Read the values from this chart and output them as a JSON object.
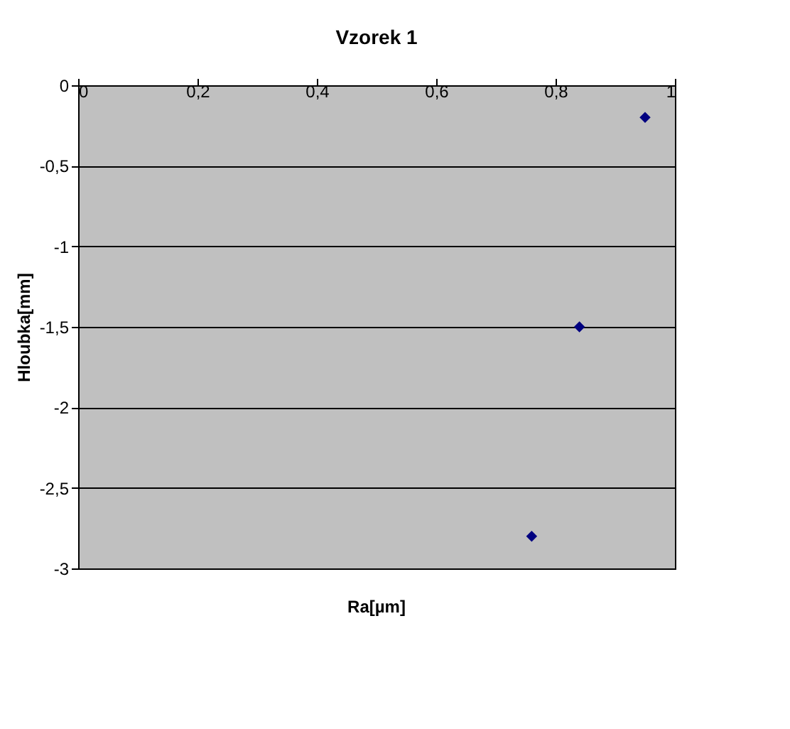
{
  "chart_data": {
    "type": "scatter",
    "title": "Vzorek 1",
    "xlabel": "Ra[µm]",
    "ylabel": "Hloubka[mm]",
    "x": [
      0.95,
      0.84,
      0.76
    ],
    "series": [
      {
        "color": "#000080",
        "values": [
          -0.2,
          -1.5,
          -2.8
        ]
      }
    ],
    "marker": "diamond",
    "xlim": [
      0,
      1
    ],
    "xticks": [
      {
        "value": 0,
        "label": "0"
      },
      {
        "value": 0.2,
        "label": "0,2"
      },
      {
        "value": 0.4,
        "label": "0,4"
      },
      {
        "value": 0.6,
        "label": "0,6"
      },
      {
        "value": 0.8,
        "label": "0,8"
      },
      {
        "value": 1,
        "label": "1"
      }
    ],
    "ylim": [
      -3,
      0
    ],
    "yticks": [
      {
        "value": -3,
        "label": "-3"
      },
      {
        "value": -2.5,
        "label": "-2,5"
      },
      {
        "value": -2,
        "label": "-2"
      },
      {
        "value": -1.5,
        "label": "-1,5"
      },
      {
        "value": -1,
        "label": "-1"
      },
      {
        "value": -0.5,
        "label": "-0,5"
      },
      {
        "value": 0,
        "label": "0"
      }
    ],
    "grid": "y"
  }
}
